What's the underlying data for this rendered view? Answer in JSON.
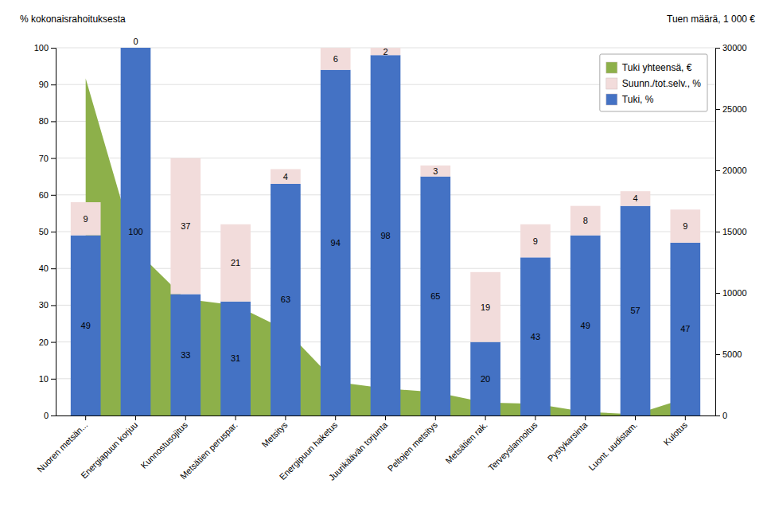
{
  "chart_data": {
    "type": "bar",
    "stacked": true,
    "categories": [
      "Nuoren metsän...",
      "Energiapuun korjuu",
      "Kunnostusojitus",
      "Metsätien peruspar.",
      "Metsitys",
      "Energipuun haketus",
      "Juurikäävän torjunta",
      "Peltojen metsitys",
      "Metsätien rak.",
      "Terveyslannoitus",
      "Pystykarsinta",
      "Luont. uudistam.",
      "Kulotus"
    ],
    "ylabel": "% kokonaisrahoituksesta",
    "y2label": "Tuen määrä, 1 000 €",
    "ylim": [
      0,
      100
    ],
    "yticks": [
      0,
      10,
      20,
      30,
      40,
      50,
      60,
      70,
      80,
      90,
      100
    ],
    "y2lim": [
      0,
      30000
    ],
    "y2ticks": [
      0,
      5000,
      10000,
      15000,
      20000,
      25000,
      30000
    ],
    "grid": true,
    "legend": "upper right",
    "series": [
      {
        "name": "Tuki yhteensä, €",
        "type": "area",
        "axis": "y2",
        "color": "#8DB04A",
        "values": [
          27500,
          13500,
          9500,
          9000,
          7000,
          2750,
          2200,
          1900,
          1050,
          950,
          300,
          100,
          1400
        ]
      },
      {
        "name": "Tuki, %",
        "type": "bar",
        "color": "#4472C4",
        "data_labels": true,
        "values": [
          49,
          100,
          33,
          31,
          63,
          94,
          98,
          65,
          20,
          43,
          49,
          57,
          47
        ]
      },
      {
        "name": "Suunn./tot.selv., %",
        "type": "bar",
        "color": "#F2DCDB",
        "data_labels": true,
        "values": [
          9,
          0,
          37,
          21,
          4,
          6,
          2,
          3,
          19,
          9,
          8,
          4,
          9
        ]
      }
    ]
  }
}
